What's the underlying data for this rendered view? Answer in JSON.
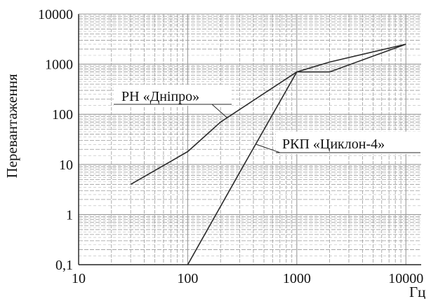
{
  "chart_data": {
    "type": "line",
    "title": "",
    "xlabel": "Гц",
    "ylabel": "Перевантаження",
    "x_scale": "log",
    "y_scale": "log",
    "xlim": [
      10,
      10000
    ],
    "ylim": [
      0.1,
      10000
    ],
    "x_ticks": [
      10,
      100,
      1000,
      10000
    ],
    "x_tick_labels": [
      "10",
      "100",
      "1000",
      "10000"
    ],
    "y_ticks": [
      0.1,
      1,
      10,
      100,
      1000,
      10000
    ],
    "y_tick_labels": [
      "0,1",
      "1",
      "10",
      "100",
      "1000",
      "10000"
    ],
    "grid": true,
    "series": [
      {
        "name": "РН «Дніпро»",
        "x": [
          30,
          100,
          130,
          200,
          1000,
          2000,
          10000
        ],
        "y": [
          4,
          18,
          30,
          70,
          700,
          1100,
          2500
        ]
      },
      {
        "name": "РКП «Циклон-4»",
        "x": [
          100,
          300,
          1000,
          2000,
          10000
        ],
        "y": [
          0.1,
          7,
          700,
          700,
          2500
        ]
      }
    ],
    "annotations": [
      {
        "text": "РН «Дніпро»",
        "series": 0
      },
      {
        "text": "РКП «Циклон-4»",
        "series": 1
      }
    ],
    "colors": {
      "line": "#2a2a2a",
      "grid": "#9a9a9a",
      "axis": "#222222",
      "text": "#111111"
    }
  }
}
